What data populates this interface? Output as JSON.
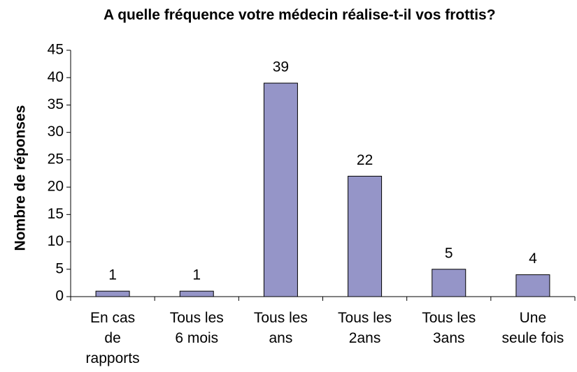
{
  "chart_data": {
    "type": "bar",
    "title": "A quelle fréquence votre médecin réalise-t-il vos frottis?",
    "y_label": "Nombre de réponses",
    "categories": [
      "En cas\nde\nrapports",
      "Tous les\n6 mois",
      "Tous les\nans",
      "Tous les\n2ans",
      "Tous les\n3ans",
      "Une\nseule fois"
    ],
    "values": [
      1,
      1,
      39,
      22,
      5,
      4
    ],
    "color": "#9595c8",
    "ylim": [
      0,
      45
    ],
    "yticks": [
      0,
      5,
      10,
      15,
      20,
      25,
      30,
      35,
      40,
      45
    ],
    "grid": false
  }
}
